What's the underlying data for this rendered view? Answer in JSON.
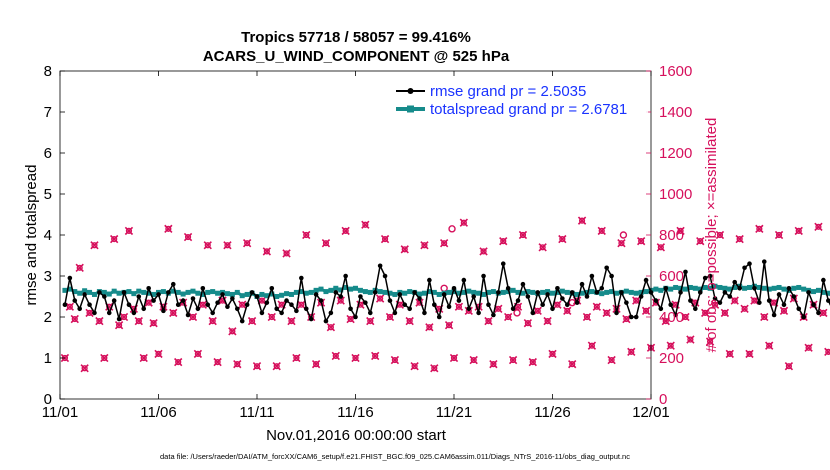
{
  "chart_data": {
    "type": "line",
    "title_line1": "Tropics 57718 / 58057 = 99.416%",
    "title_line2": "ACARS_U_WIND_COMPONENT @ 525 hPa",
    "xlabel": "Nov.01,2016 00:00:00 start",
    "ylabel_left": "rmse and totalspread",
    "ylabel_right": "# of obs: o=possible; ×=assimilated",
    "footnote": "data file: /Users/raeder/DAI/ATM_forcXX/CAM6_setup/f.e21.FHIST_BGC.f09_025.CAM6assim.011/Diags_NTrS_2016-11/obs_diag_output.nc",
    "xlim": [
      0,
      30
    ],
    "ylim_left": [
      0,
      8
    ],
    "ylim_right": [
      0,
      1600
    ],
    "x_ticks": [
      0,
      5,
      10,
      15,
      20,
      25,
      30
    ],
    "x_tick_labels": [
      "11/01",
      "11/06",
      "11/11",
      "11/16",
      "11/21",
      "11/26",
      "12/01"
    ],
    "y_ticks_left": [
      "0",
      "1",
      "2",
      "3",
      "4",
      "5",
      "6",
      "7",
      "8"
    ],
    "y_ticks_right": [
      "0",
      "200",
      "400",
      "600",
      "800",
      "1000",
      "1200",
      "1400",
      "1600"
    ],
    "legend": {
      "position": "top-right",
      "entries": [
        "rmse grand pr = 2.5035",
        "totalspread grand pr = 2.6781"
      ]
    },
    "colors": {
      "rmse": "#000000",
      "totalspread": "#168b8b",
      "obs": "#d6105c",
      "legend_text": "#1a33ff"
    },
    "series": [
      {
        "name": "rmse",
        "step_days": 0.25,
        "values": [
          2.3,
          2.95,
          2.4,
          2.2,
          2.55,
          2.3,
          2.1,
          2.6,
          2.5,
          2.1,
          2.4,
          1.95,
          2.6,
          2.3,
          2.1,
          2.5,
          2.2,
          2.7,
          2.4,
          2.55,
          2.15,
          2.6,
          2.8,
          2.3,
          2.4,
          2.05,
          2.45,
          2.2,
          2.7,
          2.3,
          2.1,
          2.35,
          2.55,
          2.25,
          2.45,
          2.2,
          1.9,
          2.3,
          2.6,
          2.5,
          2.1,
          2.35,
          2.7,
          2.2,
          2.1,
          2.4,
          2.3,
          2.15,
          2.95,
          2.2,
          1.95,
          2.55,
          2.4,
          1.9,
          2.1,
          2.6,
          2.5,
          3.0,
          2.2,
          2.0,
          2.5,
          2.35,
          2.1,
          2.6,
          3.25,
          3.0,
          2.4,
          2.1,
          2.55,
          2.3,
          2.2,
          2.6,
          2.45,
          2.1,
          2.9,
          2.3,
          2.0,
          2.55,
          2.25,
          2.7,
          2.4,
          2.9,
          2.2,
          2.5,
          2.1,
          3.0,
          2.3,
          2.05,
          2.6,
          3.3,
          2.7,
          2.2,
          2.4,
          2.8,
          2.5,
          2.1,
          2.6,
          2.3,
          2.55,
          2.2,
          2.7,
          2.45,
          2.3,
          2.6,
          2.35,
          2.8,
          2.5,
          3.0,
          2.6,
          2.7,
          3.2,
          3.0,
          2.1,
          2.6,
          2.35,
          2.0,
          2.0,
          2.5,
          2.9,
          2.6,
          2.4,
          2.2,
          2.7,
          2.3,
          2.05,
          2.6,
          3.1,
          2.4,
          2.2,
          2.6,
          2.95,
          3.0,
          2.45,
          2.35,
          2.6,
          2.5,
          2.85,
          2.7,
          3.2,
          3.3,
          2.7,
          2.35,
          3.35,
          2.4,
          2.05,
          2.55,
          2.3,
          2.7,
          2.5,
          2.2,
          2.0,
          2.6,
          2.3,
          2.1,
          2.9,
          2.4,
          2.15,
          2.55,
          2.3,
          2.7,
          2.4,
          2.2,
          2.6,
          2.8,
          2.3,
          2.1,
          2.0,
          1.95,
          1.85,
          2.5,
          1.95,
          2.1,
          2.6,
          2.3,
          2.1,
          2.75,
          2.5,
          2.8,
          2.2,
          2.5,
          2.1,
          3.5,
          2.7,
          2.9,
          2.2,
          2.5,
          2.6,
          3.05,
          2.8,
          2.95,
          2.3,
          2.55,
          3.0,
          2.7,
          2.6
        ]
      },
      {
        "name": "totalspread",
        "step_days": 0.25,
        "values": [
          2.65,
          2.68,
          2.62,
          2.58,
          2.64,
          2.6,
          2.55,
          2.62,
          2.6,
          2.56,
          2.63,
          2.58,
          2.6,
          2.62,
          2.57,
          2.63,
          2.6,
          2.58,
          2.55,
          2.6,
          2.62,
          2.58,
          2.63,
          2.6,
          2.56,
          2.6,
          2.63,
          2.58,
          2.55,
          2.6,
          2.62,
          2.58,
          2.6,
          2.57,
          2.55,
          2.6,
          2.52,
          2.55,
          2.58,
          2.5,
          2.55,
          2.52,
          2.56,
          2.5,
          2.53,
          2.57,
          2.55,
          2.6,
          2.62,
          2.58,
          2.6,
          2.65,
          2.68,
          2.62,
          2.65,
          2.7,
          2.66,
          2.72,
          2.68,
          2.7,
          2.65,
          2.62,
          2.6,
          2.65,
          2.62,
          2.6,
          2.58,
          2.55,
          2.6,
          2.58,
          2.62,
          2.6,
          2.56,
          2.58,
          2.62,
          2.6,
          2.55,
          2.58,
          2.6,
          2.62,
          2.58,
          2.6,
          2.63,
          2.6,
          2.58,
          2.55,
          2.6,
          2.62,
          2.58,
          2.6,
          2.62,
          2.65,
          2.6,
          2.58,
          2.62,
          2.6,
          2.57,
          2.6,
          2.62,
          2.58,
          2.6,
          2.63,
          2.6,
          2.58,
          2.55,
          2.58,
          2.6,
          2.62,
          2.6,
          2.57,
          2.6,
          2.62,
          2.58,
          2.6,
          2.63,
          2.6,
          2.58,
          2.6,
          2.62,
          2.65,
          2.68,
          2.65,
          2.7,
          2.68,
          2.72,
          2.7,
          2.68,
          2.72,
          2.7,
          2.68,
          2.72,
          2.7,
          2.75,
          2.72,
          2.7,
          2.68,
          2.72,
          2.75,
          2.7,
          2.72,
          2.75,
          2.72,
          2.7,
          2.68,
          2.7,
          2.72,
          2.68,
          2.65,
          2.7,
          2.72,
          2.68,
          2.65,
          2.62,
          2.65,
          2.6,
          2.58,
          2.6,
          2.62,
          2.58,
          2.6,
          2.62,
          2.6,
          2.58,
          2.55,
          2.58,
          2.6,
          2.62,
          2.58,
          2.55,
          2.58,
          2.6,
          2.62,
          2.6,
          2.65,
          2.62,
          2.6,
          2.65,
          2.68,
          2.65,
          2.7,
          2.72,
          2.7,
          2.75,
          2.8,
          2.85,
          2.9,
          2.88,
          2.85,
          2.92,
          2.9,
          2.88
        ]
      },
      {
        "name": "obs_assimilated",
        "step_days": 0.25,
        "values": [
          200,
          450,
          390,
          640,
          150,
          420,
          750,
          380,
          200,
          450,
          780,
          360,
          400,
          820,
          440,
          380,
          200,
          470,
          370,
          220,
          450,
          830,
          420,
          180,
          470,
          790,
          400,
          220,
          460,
          750,
          380,
          180,
          480,
          750,
          330,
          170,
          460,
          760,
          380,
          160,
          480,
          720,
          400,
          160,
          460,
          710,
          380,
          200,
          460,
          800,
          400,
          170,
          470,
          760,
          350,
          210,
          480,
          820,
          390,
          200,
          460,
          850,
          380,
          210,
          490,
          780,
          400,
          190,
          460,
          730,
          380,
          160,
          470,
          750,
          350,
          150,
          440,
          760,
          360,
          200,
          450,
          860,
          430,
          190,
          450,
          720,
          380,
          170,
          440,
          770,
          400,
          190,
          450,
          800,
          370,
          180,
          430,
          740,
          380,
          220,
          460,
          780,
          430,
          170,
          480,
          870,
          400,
          260,
          450,
          820,
          420,
          190,
          440,
          760,
          390,
          230,
          480,
          770,
          430,
          250,
          470,
          740,
          380,
          260,
          460,
          820,
          400,
          290,
          470,
          770,
          420,
          280,
          460,
          800,
          420,
          220,
          480,
          780,
          440,
          220,
          480,
          830,
          400,
          260,
          470,
          800,
          430,
          160,
          490,
          820,
          400,
          250,
          460,
          840,
          420,
          230,
          490,
          760,
          440,
          240,
          490,
          850,
          420,
          250,
          470,
          780,
          430,
          180,
          460,
          850,
          420,
          240,
          450,
          800,
          400,
          220,
          500,
          810,
          380,
          180,
          470,
          830,
          400,
          250,
          450,
          780,
          360,
          0
        ]
      },
      {
        "name": "obs_possible_extra",
        "points": [
          [
            19.9,
            830
          ],
          [
            19.5,
            540
          ],
          [
            23.2,
            420
          ],
          [
            28.6,
            800
          ],
          [
            26.0,
            470
          ]
        ]
      }
    ]
  }
}
